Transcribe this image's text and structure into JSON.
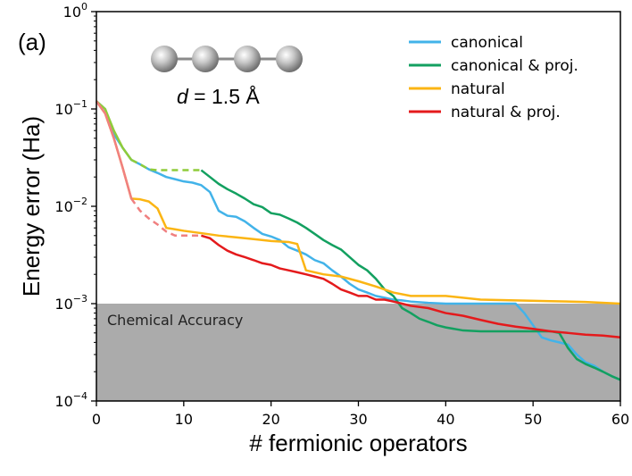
{
  "chart_data": {
    "type": "line",
    "panel_label": "(a)",
    "molecule_caption": {
      "symbol": "d",
      "rest": " = 1.5 Å"
    },
    "xlabel": "# fermionic operators",
    "ylabel": "Energy error (Ha)",
    "xlim": [
      0,
      60
    ],
    "ylim": [
      0.0001,
      1
    ],
    "yscale": "log",
    "xticks": [
      0,
      10,
      20,
      30,
      40,
      50,
      60
    ],
    "xtick_labels": [
      "0",
      "10",
      "20",
      "30",
      "40",
      "50",
      "60"
    ],
    "yticks": [
      {
        "value": 1,
        "base": "10",
        "exp": "0"
      },
      {
        "value": 0.1,
        "base": "10",
        "exp": "−1"
      },
      {
        "value": 0.01,
        "base": "10",
        "exp": "−2"
      },
      {
        "value": 0.001,
        "base": "10",
        "exp": "−3"
      },
      {
        "value": 0.0001,
        "base": "10",
        "exp": "−4"
      }
    ],
    "shaded_region": {
      "label": "Chemical Accuracy",
      "ymax": 0.001,
      "color": "#ababab"
    },
    "series": [
      {
        "name": "canonical",
        "color": "#42b3e9",
        "points": [
          [
            0,
            0.12
          ],
          [
            1,
            0.1
          ],
          [
            2,
            0.055
          ],
          [
            3,
            0.04
          ],
          [
            4,
            0.03
          ],
          [
            5,
            0.027
          ],
          [
            6,
            0.024
          ],
          [
            7,
            0.022
          ],
          [
            8,
            0.02
          ],
          [
            9,
            0.019
          ],
          [
            10,
            0.018
          ],
          [
            11,
            0.0175
          ],
          [
            12,
            0.0165
          ],
          [
            13,
            0.014
          ],
          [
            14,
            0.009
          ],
          [
            15,
            0.008
          ],
          [
            16,
            0.0078
          ],
          [
            17,
            0.007
          ],
          [
            18,
            0.006
          ],
          [
            19,
            0.0052
          ],
          [
            20,
            0.0049
          ],
          [
            21,
            0.0045
          ],
          [
            22,
            0.0038
          ],
          [
            23,
            0.0035
          ],
          [
            24,
            0.0032
          ],
          [
            25,
            0.0028
          ],
          [
            26,
            0.0026
          ],
          [
            27,
            0.0022
          ],
          [
            28,
            0.0019
          ],
          [
            29,
            0.0016
          ],
          [
            30,
            0.0014
          ],
          [
            31,
            0.0013
          ],
          [
            32,
            0.0012
          ],
          [
            33,
            0.00115
          ],
          [
            34,
            0.0011
          ],
          [
            35,
            0.00108
          ],
          [
            36,
            0.00105
          ],
          [
            38,
            0.00102
          ],
          [
            40,
            0.001
          ],
          [
            48,
            0.001
          ],
          [
            49,
            0.0008
          ],
          [
            50,
            0.0006
          ],
          [
            51,
            0.00045
          ],
          [
            52,
            0.00042
          ],
          [
            53,
            0.0004
          ],
          [
            54,
            0.00038
          ],
          [
            55,
            0.0003
          ],
          [
            56,
            0.00025
          ],
          [
            57,
            0.00023
          ],
          [
            58,
            0.0002
          ],
          [
            59,
            0.00018
          ],
          [
            60,
            0.000165
          ]
        ],
        "dashed_until": null
      },
      {
        "name": "canonical & proj.",
        "color": "#13a060",
        "points": [
          [
            0,
            0.12
          ],
          [
            1,
            0.1
          ],
          [
            2,
            0.06
          ],
          [
            3,
            0.04
          ],
          [
            4,
            0.03
          ],
          [
            5,
            0.027
          ],
          [
            6,
            0.024
          ],
          [
            7,
            0.0235
          ],
          [
            8,
            0.0235
          ],
          [
            9,
            0.0235
          ],
          [
            10,
            0.0235
          ],
          [
            11,
            0.0235
          ],
          [
            12,
            0.0235
          ],
          [
            13,
            0.02
          ],
          [
            14,
            0.017
          ],
          [
            15,
            0.015
          ],
          [
            16,
            0.0135
          ],
          [
            17,
            0.012
          ],
          [
            18,
            0.0105
          ],
          [
            19,
            0.0098
          ],
          [
            20,
            0.0085
          ],
          [
            21,
            0.0082
          ],
          [
            22,
            0.0075
          ],
          [
            23,
            0.0068
          ],
          [
            24,
            0.006
          ],
          [
            25,
            0.0052
          ],
          [
            26,
            0.0045
          ],
          [
            27,
            0.004
          ],
          [
            28,
            0.0036
          ],
          [
            29,
            0.003
          ],
          [
            30,
            0.0025
          ],
          [
            31,
            0.0022
          ],
          [
            32,
            0.0018
          ],
          [
            33,
            0.0014
          ],
          [
            34,
            0.0012
          ],
          [
            35,
            0.0009
          ],
          [
            36,
            0.0008
          ],
          [
            37,
            0.0007
          ],
          [
            38,
            0.00065
          ],
          [
            39,
            0.0006
          ],
          [
            40,
            0.00057
          ],
          [
            42,
            0.00053
          ],
          [
            44,
            0.00052
          ],
          [
            52,
            0.00052
          ],
          [
            53,
            0.0005
          ],
          [
            54,
            0.00035
          ],
          [
            55,
            0.00027
          ],
          [
            56,
            0.00024
          ],
          [
            57,
            0.00022
          ],
          [
            58,
            0.0002
          ],
          [
            59,
            0.00018
          ],
          [
            60,
            0.000165
          ]
        ],
        "dashed_until": 12,
        "dash_color": "#8fcc3a"
      },
      {
        "name": "natural",
        "color": "#fbb514",
        "points": [
          [
            0,
            0.12
          ],
          [
            1,
            0.09
          ],
          [
            2,
            0.05
          ],
          [
            3,
            0.025
          ],
          [
            4,
            0.012
          ],
          [
            5,
            0.0118
          ],
          [
            6,
            0.0112
          ],
          [
            7,
            0.0095
          ],
          [
            8,
            0.006
          ],
          [
            9,
            0.0058
          ],
          [
            10,
            0.0056
          ],
          [
            12,
            0.0053
          ],
          [
            14,
            0.005
          ],
          [
            16,
            0.0048
          ],
          [
            18,
            0.0046
          ],
          [
            20,
            0.0044
          ],
          [
            22,
            0.0043
          ],
          [
            23,
            0.0041
          ],
          [
            24,
            0.0022
          ],
          [
            26,
            0.002
          ],
          [
            28,
            0.0019
          ],
          [
            30,
            0.0017
          ],
          [
            32,
            0.0015
          ],
          [
            34,
            0.0013
          ],
          [
            36,
            0.0012
          ],
          [
            40,
            0.0012
          ],
          [
            44,
            0.0011
          ],
          [
            48,
            0.00108
          ],
          [
            52,
            0.00106
          ],
          [
            56,
            0.00104
          ],
          [
            60,
            0.001
          ]
        ],
        "dashed_until": null
      },
      {
        "name": "natural & proj.",
        "color": "#e41a1c",
        "points": [
          [
            0,
            0.12
          ],
          [
            1,
            0.09
          ],
          [
            2,
            0.05
          ],
          [
            3,
            0.025
          ],
          [
            4,
            0.012
          ],
          [
            5,
            0.009
          ],
          [
            6,
            0.0075
          ],
          [
            7,
            0.0065
          ],
          [
            8,
            0.0055
          ],
          [
            9,
            0.005
          ],
          [
            10,
            0.005
          ],
          [
            11,
            0.005
          ],
          [
            12,
            0.005
          ],
          [
            13,
            0.0047
          ],
          [
            14,
            0.004
          ],
          [
            15,
            0.0035
          ],
          [
            16,
            0.0032
          ],
          [
            17,
            0.003
          ],
          [
            18,
            0.0028
          ],
          [
            19,
            0.0026
          ],
          [
            20,
            0.0025
          ],
          [
            21,
            0.0023
          ],
          [
            22,
            0.0022
          ],
          [
            23,
            0.0021
          ],
          [
            24,
            0.002
          ],
          [
            25,
            0.0019
          ],
          [
            26,
            0.0018
          ],
          [
            27,
            0.0016
          ],
          [
            28,
            0.0014
          ],
          [
            29,
            0.0013
          ],
          [
            30,
            0.0012
          ],
          [
            31,
            0.0012
          ],
          [
            32,
            0.0011
          ],
          [
            33,
            0.0011
          ],
          [
            34,
            0.00105
          ],
          [
            35,
            0.001
          ],
          [
            36,
            0.00095
          ],
          [
            38,
            0.0009
          ],
          [
            40,
            0.0008
          ],
          [
            42,
            0.00075
          ],
          [
            44,
            0.00068
          ],
          [
            46,
            0.00062
          ],
          [
            48,
            0.00058
          ],
          [
            50,
            0.00055
          ],
          [
            52,
            0.00052
          ],
          [
            54,
            0.0005
          ],
          [
            56,
            0.00048
          ],
          [
            58,
            0.00047
          ],
          [
            60,
            0.00045
          ]
        ],
        "dashed_until": 12,
        "dash_color": "#f08080"
      }
    ]
  }
}
